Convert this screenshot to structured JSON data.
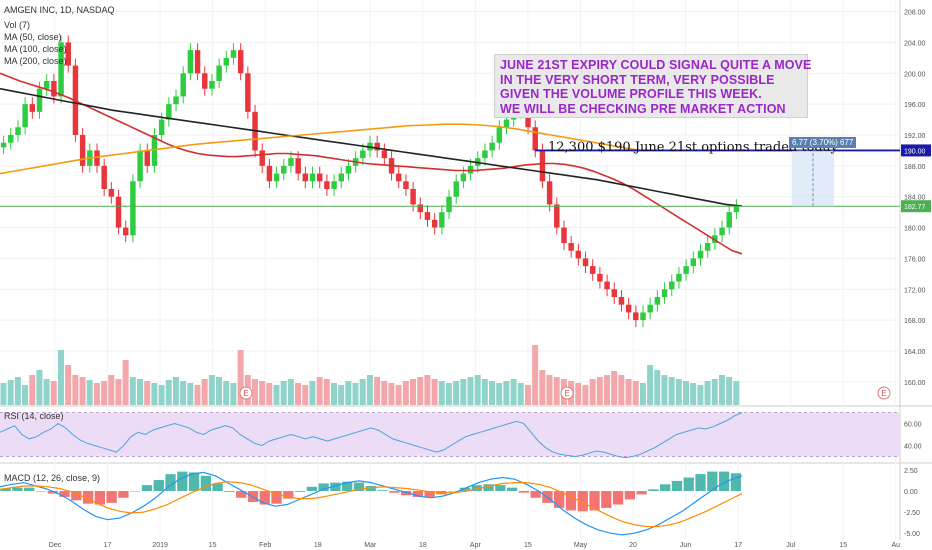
{
  "title": "AMGEN INC, 1D, NASDAQ",
  "legend": {
    "main": [
      "Vol (7)",
      "MA (50, close)",
      "MA (100, close)",
      "MA (200, close)"
    ],
    "rsi": "RSI (14, close)",
    "macd": "MACD (12, 26, close, 9)"
  },
  "annotation": {
    "lines": [
      "JUNE 21ST EXPIRY COULD SIGNAL QUITE A MOVE",
      "IN THE VERY SHORT TERM, VERY POSSIBLE",
      "GIVEN THE VOLUME PROFILE THIS WEEK.",
      "WE WILL BE CHECKING PRE MARKET ACTION"
    ],
    "color": "#9b27c9"
  },
  "options_note": "12,300 $190 June 21st options traded today",
  "measure_label": "6.77 (3.70%) 677",
  "earnings_marker": "E",
  "colors": {
    "up": "#26a69a",
    "up_candle": "#2ecc40",
    "down": "#e8363d",
    "ma50": "#d32f2f",
    "ma100": "#222222",
    "ma200": "#f39c12",
    "rsi": "#4aa3df",
    "level": "#1a1aa8"
  },
  "chart_data": [
    {
      "type": "candlestick",
      "title": "AMGEN INC, 1D, NASDAQ",
      "x_ticks": [
        "Dec",
        "17",
        "2019",
        "15",
        "Feb",
        "18",
        "Mar",
        "18",
        "Apr",
        "15",
        "May",
        "20",
        "Jun",
        "17",
        "Jul",
        "15",
        "Au"
      ],
      "y_ticks": [
        160,
        164,
        168,
        172,
        176,
        180,
        184,
        188,
        192,
        196,
        200,
        204,
        208
      ],
      "ylim": [
        157,
        209.5
      ],
      "price_labels": [
        {
          "value": 190.0,
          "label": "190.00",
          "color": "#1a1aa8"
        },
        {
          "value": 182.77,
          "label": "182.77",
          "color": "#4caf50"
        }
      ],
      "horizontal_lines": [
        190.0,
        182.77
      ],
      "close": [
        191,
        192,
        193,
        196,
        195,
        198,
        199,
        197,
        204,
        201,
        192,
        188,
        190,
        188,
        185,
        184,
        180,
        179,
        186,
        190,
        188,
        192,
        194,
        196,
        197,
        200,
        203,
        200,
        198,
        199,
        201,
        202,
        203,
        200,
        195,
        190,
        188,
        186,
        187,
        188,
        189,
        187,
        186,
        187,
        186,
        185,
        186,
        187,
        188,
        189,
        190,
        191,
        190,
        189,
        187,
        186,
        185,
        183,
        182,
        181,
        180,
        182,
        184,
        186,
        187,
        188,
        189,
        190,
        191,
        193,
        194,
        195,
        196,
        193,
        190,
        186,
        183,
        180,
        178,
        177,
        176,
        175,
        174,
        173,
        172,
        171,
        170,
        169,
        168,
        169,
        170,
        171,
        172,
        173,
        174,
        175,
        176,
        177,
        178,
        179,
        180,
        182,
        182.77
      ],
      "series": [
        {
          "name": "MA (50, close)",
          "values": [
            200,
            199.5,
            199,
            198.6,
            198.2,
            197.8,
            197.3,
            196.8,
            196.2,
            195.6,
            195,
            194.4,
            193.8,
            193.2,
            192.6,
            192,
            191.4,
            190.8,
            190.3,
            189.9,
            189.6,
            189.4,
            189.3,
            189.2,
            189.2,
            189.3,
            189.4,
            189.5,
            189.6,
            189.6,
            189.5,
            189.4,
            189.3,
            189.1,
            188.9,
            188.7,
            188.5,
            188.3,
            188.2,
            188.1,
            188,
            187.9,
            187.8,
            187.7,
            187.6,
            187.5,
            187.4,
            187.4,
            187.4,
            187.5,
            187.6,
            187.7,
            187.9,
            188.1,
            188.2,
            188.3,
            188.3,
            188.2,
            188,
            187.7,
            187.3,
            186.8,
            186.3,
            185.7,
            185,
            184.2,
            183.4,
            182.6,
            181.8,
            181,
            180.2,
            179.4,
            178.6,
            177.8,
            177,
            176.6
          ]
        },
        {
          "name": "MA (100, close)",
          "values": [
            198,
            197.6,
            197.2,
            196.8,
            196.4,
            196,
            195.6,
            195.2,
            194.9,
            194.6,
            194.3,
            194,
            193.7,
            193.4,
            193.1,
            192.8,
            192.5,
            192.2,
            191.9,
            191.6,
            191.3,
            191,
            190.7,
            190.4,
            190.1,
            189.8,
            189.5,
            189.2,
            188.9,
            188.6,
            188.3,
            188,
            187.7,
            187.4,
            187.1,
            186.8,
            186.5,
            186.2,
            185.8,
            185.4,
            185,
            184.6,
            184.2,
            183.8,
            183.4,
            183,
            182.8
          ]
        },
        {
          "name": "MA (200, close)",
          "values": [
            187,
            187.4,
            187.8,
            188.2,
            188.6,
            189,
            189.3,
            189.6,
            189.9,
            190.2,
            190.5,
            190.8,
            191,
            191.2,
            191.4,
            191.6,
            191.8,
            192,
            192.2,
            192.4,
            192.6,
            192.8,
            193,
            193.2,
            193.3,
            193.4,
            193.4,
            193.3,
            193.1,
            192.8,
            192.4,
            192,
            191.6,
            191.2,
            190.8,
            190.4,
            190
          ]
        }
      ]
    },
    {
      "type": "bar",
      "title": "Vol (7)",
      "values": [
        22,
        25,
        28,
        20,
        30,
        35,
        26,
        24,
        55,
        40,
        30,
        28,
        25,
        22,
        24,
        30,
        26,
        45,
        28,
        26,
        24,
        22,
        20,
        25,
        28,
        24,
        22,
        20,
        26,
        30,
        28,
        24,
        22,
        55,
        30,
        26,
        24,
        22,
        20,
        24,
        26,
        22,
        20,
        24,
        28,
        26,
        22,
        20,
        24,
        22,
        26,
        30,
        28,
        24,
        22,
        20,
        24,
        26,
        28,
        30,
        26,
        24,
        22,
        24,
        26,
        28,
        30,
        26,
        24,
        22,
        24,
        26,
        22,
        20,
        60,
        35,
        30,
        28,
        26,
        24,
        22,
        20,
        26,
        28,
        30,
        34,
        30,
        26,
        24,
        22,
        40,
        35,
        30,
        28,
        26,
        24,
        22,
        20,
        24,
        26,
        30,
        28,
        24
      ]
    },
    {
      "type": "line",
      "title": "RSI (14, close)",
      "y_ticks": [
        40.0,
        60.0
      ],
      "ylim": [
        25,
        75
      ],
      "values": [
        52,
        55,
        58,
        50,
        46,
        48,
        52,
        55,
        60,
        56,
        50,
        45,
        42,
        40,
        38,
        36,
        34,
        40,
        48,
        52,
        50,
        54,
        56,
        58,
        60,
        58,
        56,
        52,
        50,
        54,
        56,
        58,
        56,
        50,
        46,
        42,
        40,
        44,
        46,
        48,
        50,
        48,
        46,
        48,
        46,
        44,
        46,
        48,
        50,
        52,
        54,
        56,
        54,
        50,
        46,
        44,
        42,
        40,
        38,
        36,
        34,
        36,
        40,
        44,
        48,
        50,
        52,
        54,
        56,
        58,
        60,
        62,
        60,
        52,
        44,
        38,
        34,
        32,
        31,
        30,
        31,
        33,
        35,
        34,
        32,
        30,
        29,
        30,
        32,
        35,
        38,
        42,
        46,
        50,
        52,
        54,
        56,
        55,
        57,
        60,
        63,
        67,
        70
      ]
    },
    {
      "type": "line",
      "title": "MACD (12, 26, close, 9)",
      "y_ticks": [
        2.5,
        0.0,
        -2.5,
        -5.0
      ],
      "ylim": [
        -5.8,
        3.2
      ],
      "series": [
        {
          "name": "MACD",
          "values": [
            0.5,
            0.8,
            1.0,
            0.6,
            0.2,
            -0.4,
            -1.2,
            -2.2,
            -3.0,
            -3.4,
            -3.2,
            -2.6,
            -1.8,
            -0.8,
            0.4,
            1.4,
            2.0,
            2.2,
            1.8,
            1.0,
            0.2,
            -0.6,
            -1.4,
            -1.8,
            -1.6,
            -1.0,
            -0.4,
            0.2,
            0.6,
            1.0,
            1.2,
            1.0,
            0.6,
            0.2,
            -0.2,
            -0.6,
            -0.8,
            -0.6,
            -0.2,
            0.4,
            1.0,
            1.4,
            1.6,
            1.4,
            0.8,
            0.0,
            -1.0,
            -2.2,
            -3.2,
            -4.0,
            -4.6,
            -5.0,
            -5.2,
            -5.0,
            -4.6,
            -4.0,
            -3.2,
            -2.4,
            -1.4,
            -0.4,
            0.6,
            1.3,
            1.8
          ]
        },
        {
          "name": "Signal",
          "values": [
            0.2,
            0.4,
            0.6,
            0.6,
            0.5,
            0.3,
            -0.1,
            -0.7,
            -1.4,
            -2.0,
            -2.4,
            -2.6,
            -2.5,
            -2.1,
            -1.6,
            -0.9,
            -0.2,
            0.4,
            0.9,
            1.1,
            1.0,
            0.7,
            0.2,
            -0.3,
            -0.7,
            -0.9,
            -0.9,
            -0.7,
            -0.4,
            -0.1,
            0.2,
            0.4,
            0.5,
            0.4,
            0.3,
            0.1,
            -0.1,
            -0.2,
            -0.2,
            0.0,
            0.3,
            0.6,
            0.9,
            1.0,
            1.0,
            0.8,
            0.4,
            -0.2,
            -0.9,
            -1.6,
            -2.3,
            -3.0,
            -3.6,
            -4.0,
            -4.2,
            -4.2,
            -4.0,
            -3.6,
            -3.0,
            -2.4,
            -1.7,
            -1.0,
            -0.3
          ]
        },
        {
          "name": "Histogram",
          "values": [
            0.3,
            0.4,
            0.4,
            0.0,
            -0.3,
            -0.7,
            -1.1,
            -1.5,
            -1.6,
            -1.4,
            -0.8,
            0.0,
            0.7,
            1.3,
            2.0,
            2.3,
            2.2,
            1.8,
            0.9,
            -0.1,
            -0.8,
            -1.3,
            -1.6,
            -1.5,
            -0.9,
            -0.1,
            0.5,
            0.9,
            1.0,
            1.1,
            1.0,
            0.6,
            0.1,
            -0.2,
            -0.5,
            -0.7,
            -0.7,
            -0.4,
            0.0,
            0.4,
            0.7,
            0.8,
            0.7,
            0.4,
            -0.2,
            -0.8,
            -1.4,
            -2.0,
            -2.3,
            -2.4,
            -2.3,
            -2.0,
            -1.6,
            -1.0,
            -0.4,
            0.2,
            0.8,
            1.2,
            1.6,
            2.0,
            2.3,
            2.3,
            2.1
          ]
        }
      ]
    }
  ]
}
